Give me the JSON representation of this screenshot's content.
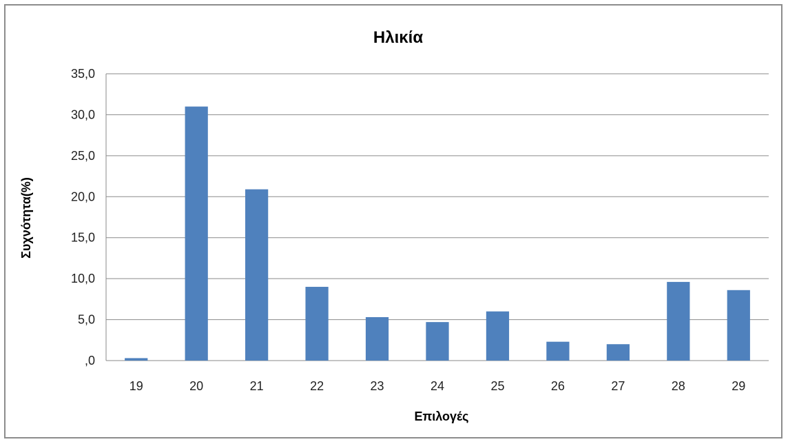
{
  "chart_data": {
    "type": "bar",
    "title": "Ηλικία",
    "xlabel": "Επιλογές",
    "ylabel": "Συχνότητα(%)",
    "categories": [
      "19",
      "20",
      "21",
      "22",
      "23",
      "24",
      "25",
      "26",
      "27",
      "28",
      "29"
    ],
    "values": [
      0.3,
      31.0,
      20.9,
      9.0,
      5.3,
      4.7,
      6.0,
      2.3,
      2.0,
      9.6,
      8.6
    ],
    "ylim": [
      0,
      35
    ],
    "yticks": [
      ",0",
      "5,0",
      "10,0",
      "15,0",
      "20,0",
      "25,0",
      "30,0",
      "35,0"
    ],
    "grid": true,
    "legend": "none",
    "bar_color": "#4f81bd"
  }
}
